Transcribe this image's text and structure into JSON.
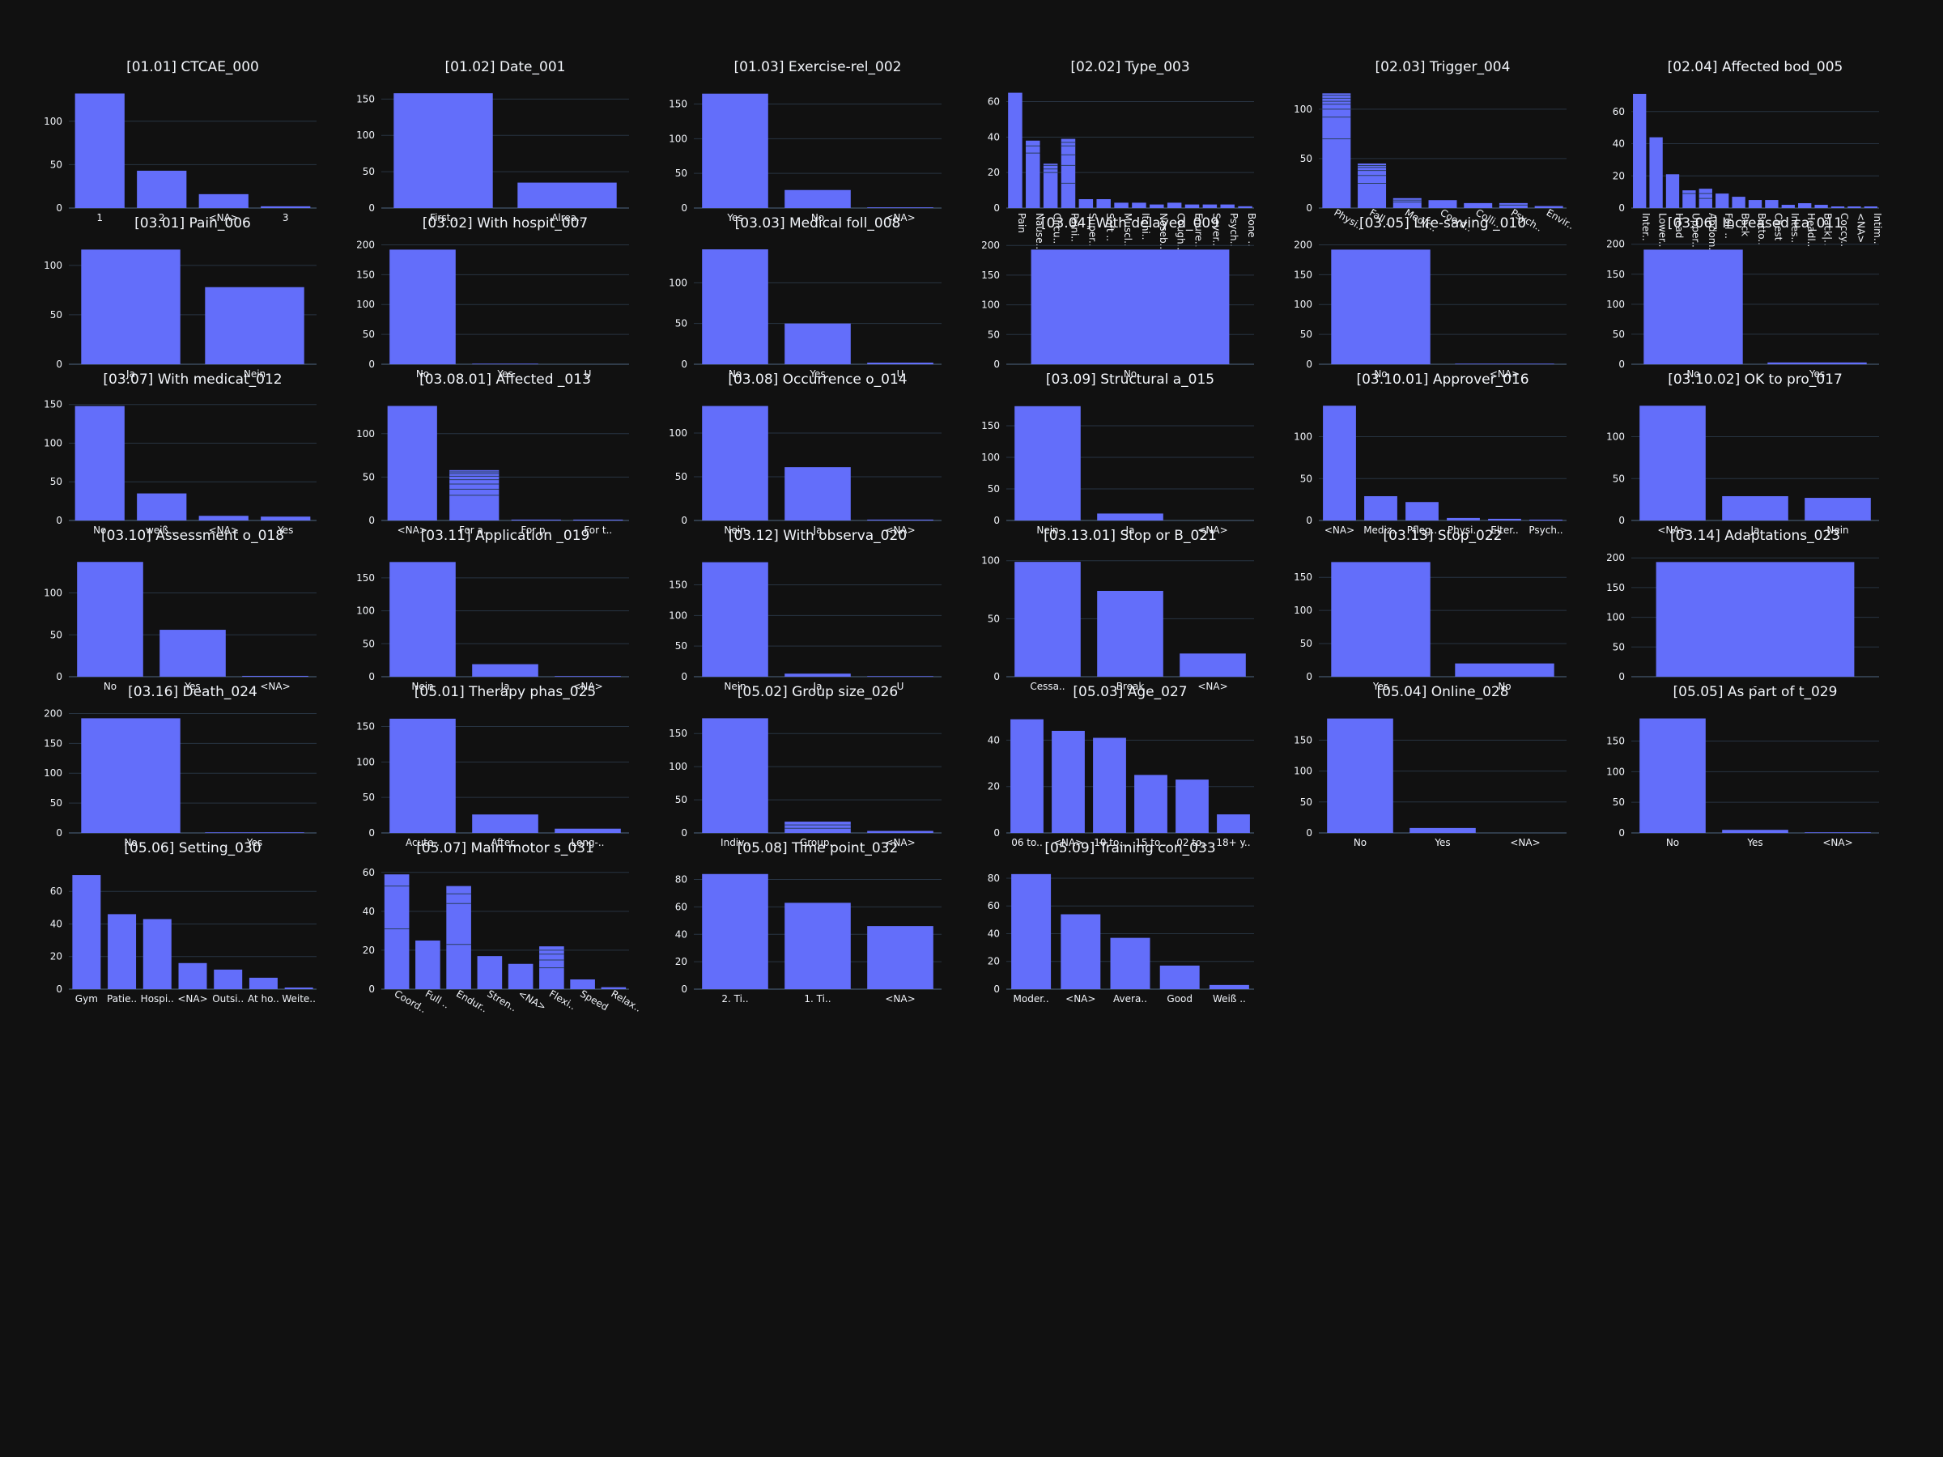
{
  "theme": {
    "background": "#111111",
    "bar_color": "#636efa",
    "grid_color": "#283442",
    "text_color": "#f2f5fa",
    "segment_line_color": "#2a3f5f"
  },
  "chart_data": [
    {
      "type": "bar",
      "title": "[01.01] CTCAE_000",
      "categories": [
        "1",
        "2",
        "<NA>",
        "3"
      ],
      "values": [
        132,
        43,
        16,
        2
      ],
      "ylim": [
        0,
        139
      ],
      "yticks": [
        0,
        50,
        100
      ],
      "grid": true
    },
    {
      "type": "bar",
      "title": "[01.02] Date_001",
      "categories": [
        "First..",
        "Alrea.."
      ],
      "values": [
        158,
        35
      ],
      "ylim": [
        0,
        166
      ],
      "yticks": [
        0,
        50,
        100,
        150
      ],
      "grid": true
    },
    {
      "type": "bar",
      "title": "[01.03] Exercise-rel_002",
      "categories": [
        "Yes",
        "No",
        "<NA>"
      ],
      "values": [
        165,
        26,
        1
      ],
      "ylim": [
        0,
        174
      ],
      "yticks": [
        0,
        50,
        100,
        150
      ],
      "grid": true
    },
    {
      "type": "bar",
      "title": "[02.02] Type_003",
      "categories": [
        "Pain",
        "Nause..",
        "Circu..",
        "Paini..",
        "Super..",
        "Soft ..",
        "Muscl..",
        "Itchi..",
        "Noseb..",
        "Cough..",
        "Enure..",
        "Sever..",
        "Psych..",
        "Bone .."
      ],
      "values": [
        65,
        38,
        25,
        39,
        5,
        5,
        3,
        3,
        2,
        3,
        2,
        2,
        2,
        1
      ],
      "ylim": [
        0,
        68
      ],
      "yticks": [
        0,
        20,
        40,
        60
      ],
      "grid": true,
      "rotate_labels": 90,
      "segments": {
        "1": [
          31,
          35
        ],
        "2": [
          20,
          22,
          24
        ],
        "3": [
          14,
          24,
          30,
          35,
          37
        ]
      }
    },
    {
      "type": "bar",
      "title": "[02.03] Trigger_004",
      "categories": [
        "Physi..",
        "Fall ..",
        "Medic..",
        "Coord..",
        "Colli..",
        "Psych..",
        "Envir.."
      ],
      "values": [
        116,
        45,
        10,
        8,
        5,
        5,
        2
      ],
      "ylim": [
        0,
        122
      ],
      "yticks": [
        0,
        50,
        100
      ],
      "grid": true,
      "rotate_labels": 45,
      "segments": {
        "0": [
          70,
          92,
          100,
          105,
          108,
          111,
          114
        ],
        "1": [
          25,
          33,
          38,
          41,
          43
        ],
        "2": [
          6,
          8
        ],
        "5": [
          3
        ]
      }
    },
    {
      "type": "bar",
      "title": "[02.04] Affected bod_005",
      "categories": [
        "Inter..",
        "Lower..",
        "Head",
        "Upper..",
        "Abdom..",
        "Full ..",
        "Back",
        "Butto..",
        "Chest",
        "Intes..",
        "Headl..",
        "Back|..",
        "Coccy..",
        "<NA>",
        "Intim.."
      ],
      "values": [
        71,
        44,
        21,
        11,
        12,
        9,
        7,
        5,
        5,
        2,
        3,
        2,
        1,
        1,
        1
      ],
      "ylim": [
        0,
        75
      ],
      "yticks": [
        0,
        20,
        40,
        60
      ],
      "grid": true,
      "rotate_labels": 90,
      "segments": {
        "3": [
          9
        ],
        "4": [
          6,
          9
        ]
      }
    },
    {
      "type": "bar",
      "title": "[03.01] Pain_006",
      "categories": [
        "Ja",
        "Nein"
      ],
      "values": [
        116,
        78
      ],
      "ylim": [
        0,
        122
      ],
      "yticks": [
        0,
        50,
        100
      ],
      "grid": true
    },
    {
      "type": "bar",
      "title": "[03.02]  With hospit_007",
      "categories": [
        "No",
        "Yes",
        "U"
      ],
      "values": [
        192,
        1,
        0
      ],
      "ylim": [
        0,
        202
      ],
      "yticks": [
        0,
        50,
        100,
        150,
        200
      ],
      "grid": true
    },
    {
      "type": "bar",
      "title": "[03.03] Medical foll_008",
      "categories": [
        "No",
        "Yes",
        "U"
      ],
      "values": [
        141,
        50,
        2
      ],
      "ylim": [
        0,
        148
      ],
      "yticks": [
        0,
        50,
        100
      ],
      "grid": true
    },
    {
      "type": "bar",
      "title": "[03.04] With delayed_009",
      "categories": [
        "No"
      ],
      "values": [
        193
      ],
      "ylim": [
        0,
        203
      ],
      "yticks": [
        0,
        50,
        100,
        150,
        200
      ],
      "grid": true
    },
    {
      "type": "bar",
      "title": "[03.05] Life-saving _010",
      "categories": [
        "No",
        "<NA>"
      ],
      "values": [
        192,
        1
      ],
      "ylim": [
        0,
        202
      ],
      "yticks": [
        0,
        50,
        100,
        150,
        200
      ],
      "grid": true
    },
    {
      "type": "bar",
      "title": "[03.06] Increased ca_011",
      "categories": [
        "No",
        "Yes"
      ],
      "values": [
        191,
        3
      ],
      "ylim": [
        0,
        201
      ],
      "yticks": [
        0,
        50,
        100,
        150,
        200
      ],
      "grid": true
    },
    {
      "type": "bar",
      "title": "[03.07] With medicat_012",
      "categories": [
        "No",
        "weiß ..",
        "<NA>",
        "Yes"
      ],
      "values": [
        148,
        35,
        6,
        5
      ],
      "ylim": [
        0,
        156
      ],
      "yticks": [
        0,
        50,
        100,
        150
      ],
      "grid": true
    },
    {
      "type": "bar",
      "title": "[03.08.01] Affected _013",
      "categories": [
        "<NA>",
        "For a..",
        "For p..",
        "For t.."
      ],
      "values": [
        132,
        58,
        1,
        1
      ],
      "ylim": [
        0,
        139
      ],
      "yticks": [
        0,
        50,
        100
      ],
      "grid": true,
      "segments": {
        "1": [
          29,
          36,
          42,
          47,
          51,
          54,
          56
        ]
      }
    },
    {
      "type": "bar",
      "title": "[03.08] Occurrence o_014",
      "categories": [
        "Nein",
        "Ja",
        "<NA>"
      ],
      "values": [
        131,
        61,
        1
      ],
      "ylim": [
        0,
        138
      ],
      "yticks": [
        0,
        50,
        100
      ],
      "grid": true
    },
    {
      "type": "bar",
      "title": "[03.09] Structural a_015",
      "categories": [
        "Nein",
        "Ja",
        "<NA>"
      ],
      "values": [
        181,
        11,
        0
      ],
      "ylim": [
        0,
        191
      ],
      "yticks": [
        0,
        50,
        100,
        150
      ],
      "grid": true
    },
    {
      "type": "bar",
      "title": "[03.10.01] Approver_016",
      "categories": [
        "<NA>",
        "Mediz..",
        "Pfleg..",
        "Physi..",
        "Elter..",
        "Psych.."
      ],
      "values": [
        137,
        29,
        22,
        3,
        2,
        1
      ],
      "ylim": [
        0,
        144
      ],
      "yticks": [
        0,
        50,
        100
      ],
      "grid": true
    },
    {
      "type": "bar",
      "title": "[03.10.02] OK to pro_017",
      "categories": [
        "<NA>",
        "Ja",
        "Nein"
      ],
      "values": [
        137,
        29,
        27
      ],
      "ylim": [
        0,
        144
      ],
      "yticks": [
        0,
        50,
        100
      ],
      "grid": true
    },
    {
      "type": "bar",
      "title": "[03.10] Assessment o_018",
      "categories": [
        "No",
        "Yes",
        "<NA>"
      ],
      "values": [
        137,
        56,
        1
      ],
      "ylim": [
        0,
        144
      ],
      "yticks": [
        0,
        50,
        100
      ],
      "grid": true
    },
    {
      "type": "bar",
      "title": "[03.11] Application _019",
      "categories": [
        "Nein",
        "Ja",
        "<NA>"
      ],
      "values": [
        174,
        19,
        1
      ],
      "ylim": [
        0,
        183
      ],
      "yticks": [
        0,
        50,
        100,
        150
      ],
      "grid": true
    },
    {
      "type": "bar",
      "title": "[03.12] With observa_020",
      "categories": [
        "Nein",
        "Ja",
        "U"
      ],
      "values": [
        187,
        5,
        1
      ],
      "ylim": [
        0,
        197
      ],
      "yticks": [
        0,
        50,
        100,
        150
      ],
      "grid": true
    },
    {
      "type": "bar",
      "title": "[03.13.01] Stop or B_021",
      "categories": [
        "Cessa..",
        "Break",
        "<NA>"
      ],
      "values": [
        99,
        74,
        20
      ],
      "ylim": [
        0,
        104
      ],
      "yticks": [
        0,
        50,
        100
      ],
      "grid": true
    },
    {
      "type": "bar",
      "title": "[03.13] Stop_022",
      "categories": [
        "Yes",
        "No"
      ],
      "values": [
        173,
        20
      ],
      "ylim": [
        0,
        182
      ],
      "yticks": [
        0,
        50,
        100,
        150
      ],
      "grid": true
    },
    {
      "type": "bar",
      "title": "[03.14] Adaptations_023",
      "categories": [
        "-"
      ],
      "values": [
        193
      ],
      "ylim": [
        0,
        203
      ],
      "yticks": [
        0,
        50,
        100,
        150,
        200
      ],
      "grid": true
    },
    {
      "type": "bar",
      "title": "[03.16] Death_024",
      "categories": [
        "No",
        "Yes"
      ],
      "values": [
        192,
        1
      ],
      "ylim": [
        0,
        202
      ],
      "yticks": [
        0,
        50,
        100,
        150,
        200
      ],
      "grid": true
    },
    {
      "type": "bar",
      "title": "[05.01] Therapy phas_025",
      "categories": [
        "Acute..",
        "After..",
        "Long-.."
      ],
      "values": [
        161,
        26,
        6
      ],
      "ylim": [
        0,
        170
      ],
      "yticks": [
        0,
        50,
        100,
        150
      ],
      "grid": true
    },
    {
      "type": "bar",
      "title": "[05.02] Group size_026",
      "categories": [
        "Indiv..",
        "Group..",
        "<NA>"
      ],
      "values": [
        173,
        17,
        3
      ],
      "ylim": [
        0,
        182
      ],
      "yticks": [
        0,
        50,
        100,
        150
      ],
      "grid": true,
      "segments": {
        "1": [
          7,
          12
        ]
      }
    },
    {
      "type": "bar",
      "title": "[05.03] Age_027",
      "categories": [
        "06 to..",
        "<NA>",
        "10 to..",
        "15 to..",
        "02 to..",
        "18+ y.."
      ],
      "values": [
        49,
        44,
        41,
        25,
        23,
        8
      ],
      "ylim": [
        0,
        52
      ],
      "yticks": [
        0,
        20,
        40
      ],
      "grid": true
    },
    {
      "type": "bar",
      "title": "[05.04] Online_028",
      "categories": [
        "No",
        "Yes",
        "<NA>"
      ],
      "values": [
        185,
        8,
        0
      ],
      "ylim": [
        0,
        195
      ],
      "yticks": [
        0,
        50,
        100,
        150
      ],
      "grid": true
    },
    {
      "type": "bar",
      "title": "[05.05] As part of t_029",
      "categories": [
        "No",
        "Yes",
        "<NA>"
      ],
      "values": [
        187,
        5,
        1
      ],
      "ylim": [
        0,
        197
      ],
      "yticks": [
        0,
        50,
        100,
        150
      ],
      "grid": true
    },
    {
      "type": "bar",
      "title": "[05.06] Setting_030",
      "categories": [
        "Gym",
        "Patie..",
        "Hospi..",
        "<NA>",
        "Outsi..",
        "At ho..",
        "Weite.."
      ],
      "values": [
        70,
        46,
        43,
        16,
        12,
        7,
        1
      ],
      "ylim": [
        0,
        74
      ],
      "yticks": [
        0,
        20,
        40,
        60
      ],
      "grid": true
    },
    {
      "type": "bar",
      "title": "[05.07] Main motor s_031",
      "categories": [
        "Coord..",
        "Full ..",
        "Endur..",
        "Stren..",
        "<NA>",
        "Flexi..",
        "Speed",
        "Relax.."
      ],
      "values": [
        59,
        25,
        53,
        17,
        13,
        22,
        5,
        1
      ],
      "ylim": [
        0,
        62
      ],
      "yticks": [
        0,
        20,
        40,
        60
      ],
      "grid": true,
      "rotate_labels": 45,
      "segments": {
        "0": [
          31,
          53
        ],
        "2": [
          23,
          44,
          49
        ],
        "5": [
          11,
          15,
          18,
          20
        ]
      }
    },
    {
      "type": "bar",
      "title": "[05.08] Time point_032",
      "categories": [
        "2. Ti..",
        "1. Ti..",
        "<NA>"
      ],
      "values": [
        84,
        63,
        46
      ],
      "ylim": [
        0,
        88
      ],
      "yticks": [
        0,
        20,
        40,
        60,
        80
      ],
      "grid": true
    },
    {
      "type": "bar",
      "title": "[05.09] Training con_033",
      "categories": [
        "Moder..",
        "<NA>",
        "Avera..",
        "Good",
        "Weiß .."
      ],
      "values": [
        83,
        54,
        37,
        17,
        3
      ],
      "ylim": [
        0,
        87
      ],
      "yticks": [
        0,
        20,
        40,
        60,
        80
      ],
      "grid": true
    }
  ]
}
